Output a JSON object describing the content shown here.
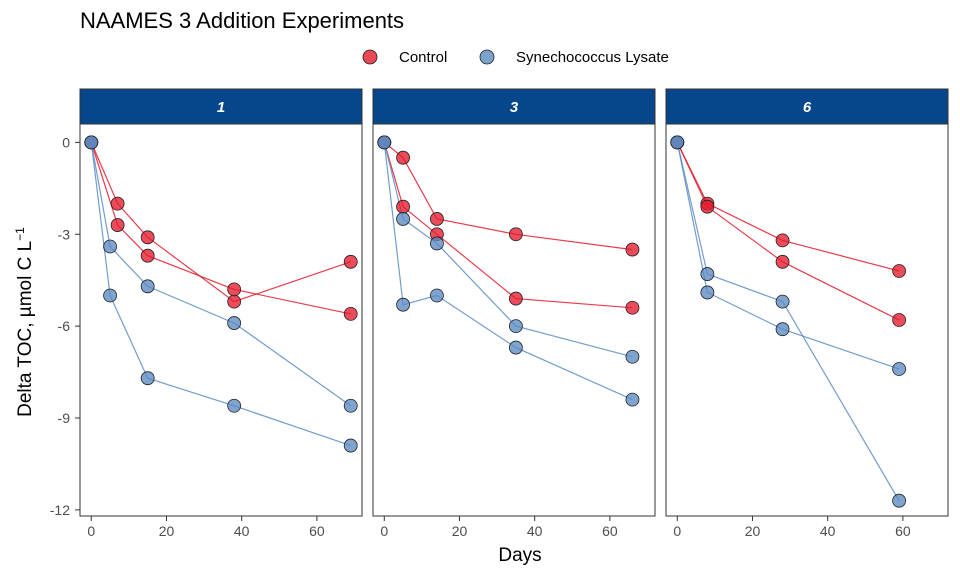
{
  "chart_data": {
    "type": "scatter",
    "title": "NAAMES 3 Addition Experiments",
    "xlabel": "Days",
    "ylabel": {
      "main": "Delta TOC, µmol C L",
      "sup": "−1"
    },
    "xlim": [
      -3,
      72
    ],
    "ylim": [
      -12.2,
      0.6
    ],
    "x_ticks": [
      0,
      20,
      40,
      60
    ],
    "y_ticks": [
      0,
      -3,
      -6,
      -9,
      -12
    ],
    "legend": {
      "position": "top",
      "entries": [
        {
          "label": "Control",
          "color": "#e41a2d"
        },
        {
          "label": "Synechococcus Lysate",
          "color": "#5b8bc2"
        }
      ]
    },
    "facet_color": "#05478a",
    "panels": [
      {
        "label": "1",
        "series": [
          {
            "treatment": "Control",
            "color": "#e41a2d",
            "x": [
              0,
              7,
              15,
              38,
              69
            ],
            "y": [
              0,
              -2.0,
              -3.1,
              -5.2,
              -3.9
            ]
          },
          {
            "treatment": "Control",
            "color": "#e41a2d",
            "x": [
              0,
              7,
              15,
              38,
              69
            ],
            "y": [
              0,
              -2.7,
              -3.7,
              -4.8,
              -5.6
            ]
          },
          {
            "treatment": "Synechococcus Lysate",
            "color": "#5b8bc2",
            "x": [
              0,
              5,
              15,
              38,
              69
            ],
            "y": [
              0,
              -3.4,
              -4.7,
              -5.9,
              -8.6
            ]
          },
          {
            "treatment": "Synechococcus Lysate",
            "color": "#5b8bc2",
            "x": [
              0,
              5,
              15,
              38,
              69
            ],
            "y": [
              0,
              -5.0,
              -7.7,
              -8.6,
              -9.9
            ]
          }
        ]
      },
      {
        "label": "3",
        "series": [
          {
            "treatment": "Control",
            "color": "#e41a2d",
            "x": [
              0,
              5,
              14,
              35,
              66
            ],
            "y": [
              0,
              -0.5,
              -2.5,
              -3.0,
              -3.5
            ]
          },
          {
            "treatment": "Control",
            "color": "#e41a2d",
            "x": [
              0,
              5,
              14,
              35,
              66
            ],
            "y": [
              0,
              -2.1,
              -3.0,
              -5.1,
              -5.4
            ]
          },
          {
            "treatment": "Synechococcus Lysate",
            "color": "#5b8bc2",
            "x": [
              0,
              5,
              14,
              35,
              66
            ],
            "y": [
              0,
              -2.5,
              -3.3,
              -6.0,
              -7.0
            ]
          },
          {
            "treatment": "Synechococcus Lysate",
            "color": "#5b8bc2",
            "x": [
              0,
              5,
              14,
              35,
              66
            ],
            "y": [
              0,
              -5.3,
              -5.0,
              -6.7,
              -8.4
            ]
          }
        ]
      },
      {
        "label": "6",
        "series": [
          {
            "treatment": "Control",
            "color": "#e41a2d",
            "x": [
              0,
              8,
              28,
              59
            ],
            "y": [
              0,
              -2.0,
              -3.2,
              -4.2
            ]
          },
          {
            "treatment": "Control",
            "color": "#e41a2d",
            "x": [
              0,
              8,
              28,
              59
            ],
            "y": [
              0,
              -2.1,
              -3.9,
              -5.8
            ]
          },
          {
            "treatment": "Synechococcus Lysate",
            "color": "#5b8bc2",
            "x": [
              0,
              8,
              28,
              59
            ],
            "y": [
              0,
              -4.3,
              -5.2,
              -11.7
            ]
          },
          {
            "treatment": "Synechococcus Lysate",
            "color": "#5b8bc2",
            "x": [
              0,
              8,
              28,
              59
            ],
            "y": [
              0,
              -4.9,
              -6.1,
              -7.4
            ]
          }
        ]
      }
    ]
  }
}
